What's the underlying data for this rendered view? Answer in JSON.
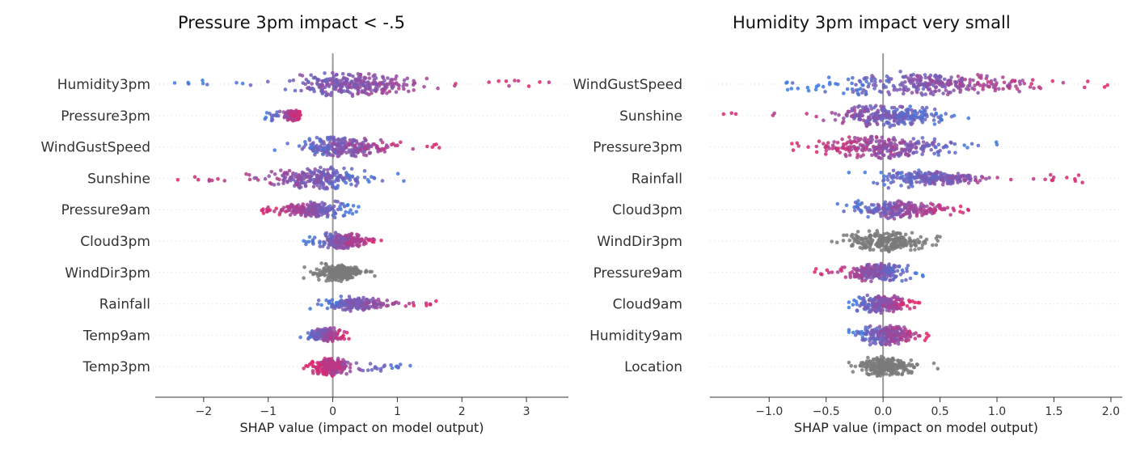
{
  "chart_data": [
    {
      "type": "scatter",
      "subtype": "shap_beeswarm",
      "title": "Pressure 3pm impact < -.5",
      "xlabel": "SHAP value (impact on model output)",
      "xlim": [
        -2.75,
        3.65
      ],
      "xticks": [
        -2,
        -1,
        0,
        1,
        2,
        3
      ],
      "xtick_labels": [
        "−2",
        "−1",
        "0",
        "1",
        "2",
        "3"
      ],
      "colors": {
        "low": "#3b7be0",
        "high": "#e0246a",
        "categorical": "#7a7a7a",
        "zero_line": "#999999"
      },
      "features": [
        {
          "name": "Humidity3pm",
          "min": -2.45,
          "max": 3.35,
          "core": [
            -0.95,
            1.55
          ],
          "low_side": "left",
          "scale": 1.0
        },
        {
          "name": "Pressure3pm",
          "min": -1.05,
          "max": -0.5,
          "core": [
            -0.75,
            -0.5
          ],
          "low_side": "left",
          "scale": 0.9
        },
        {
          "name": "WindGustSpeed",
          "min": -0.9,
          "max": 1.65,
          "core": [
            -0.75,
            1.1
          ],
          "low_side": "left",
          "scale": 0.8
        },
        {
          "name": "Sunshine",
          "min": -2.4,
          "max": 1.1,
          "core": [
            -1.3,
            0.85
          ],
          "low_side": "right",
          "scale": 0.85
        },
        {
          "name": "Pressure9am",
          "min": -1.1,
          "max": 0.4,
          "core": [
            -0.95,
            0.3
          ],
          "low_side": "right",
          "scale": 0.7
        },
        {
          "name": "Cloud3pm",
          "min": -0.45,
          "max": 0.75,
          "core": [
            -0.35,
            0.7
          ],
          "low_side": "left",
          "scale": 0.65
        },
        {
          "name": "WindDir3pm",
          "min": -0.45,
          "max": 0.65,
          "core": [
            -0.4,
            0.6
          ],
          "low_side": "none",
          "scale": 0.75
        },
        {
          "name": "Rainfall",
          "min": -0.35,
          "max": 1.6,
          "core": [
            -0.3,
            1.05
          ],
          "low_side": "left",
          "scale": 0.6
        },
        {
          "name": "Temp9am",
          "min": -0.5,
          "max": 0.25,
          "core": [
            -0.45,
            0.2
          ],
          "low_side": "left",
          "scale": 0.55
        },
        {
          "name": "Temp3pm",
          "min": -0.45,
          "max": 1.2,
          "core": [
            -0.4,
            0.3
          ],
          "low_side": "right",
          "scale": 0.75
        }
      ]
    },
    {
      "type": "scatter",
      "subtype": "shap_beeswarm",
      "title": "Humidity 3pm impact very small",
      "xlabel": "SHAP value (impact on model output)",
      "xlim": [
        -1.52,
        2.1
      ],
      "xticks": [
        -1.0,
        -0.5,
        0.0,
        0.5,
        1.0,
        1.5,
        2.0
      ],
      "xtick_labels": [
        "−1.0",
        "−0.5",
        "0.0",
        "0.5",
        "1.0",
        "1.5",
        "2.0"
      ],
      "colors": {
        "low": "#3b7be0",
        "high": "#e0246a",
        "categorical": "#7a7a7a",
        "zero_line": "#999999"
      },
      "features": [
        {
          "name": "WindGustSpeed",
          "min": -0.85,
          "max": 1.97,
          "core": [
            -0.8,
            1.6
          ],
          "low_side": "left",
          "scale": 1.0
        },
        {
          "name": "Sunshine",
          "min": -1.4,
          "max": 0.75,
          "core": [
            -0.6,
            0.72
          ],
          "low_side": "right",
          "scale": 0.85
        },
        {
          "name": "Pressure3pm",
          "min": -0.8,
          "max": 1.0,
          "core": [
            -0.8,
            0.8
          ],
          "low_side": "right",
          "scale": 0.9
        },
        {
          "name": "Rainfall",
          "min": -0.3,
          "max": 1.75,
          "core": [
            -0.25,
            1.05
          ],
          "low_side": "left",
          "scale": 0.75
        },
        {
          "name": "Cloud3pm",
          "min": -0.4,
          "max": 0.75,
          "core": [
            -0.38,
            0.72
          ],
          "low_side": "left",
          "scale": 0.7
        },
        {
          "name": "WindDir3pm",
          "min": -0.45,
          "max": 0.5,
          "core": [
            -0.45,
            0.5
          ],
          "low_side": "none",
          "scale": 0.8
        },
        {
          "name": "Pressure9am",
          "min": -0.6,
          "max": 0.35,
          "core": [
            -0.45,
            0.33
          ],
          "low_side": "right",
          "scale": 0.7
        },
        {
          "name": "Cloud9am",
          "min": -0.3,
          "max": 0.32,
          "core": [
            -0.3,
            0.3
          ],
          "low_side": "left",
          "scale": 0.7
        },
        {
          "name": "Humidity9am",
          "min": -0.3,
          "max": 0.4,
          "core": [
            -0.3,
            0.38
          ],
          "low_side": "left",
          "scale": 0.75
        },
        {
          "name": "Location",
          "min": -0.3,
          "max": 0.48,
          "core": [
            -0.3,
            0.35
          ],
          "low_side": "none",
          "scale": 0.75
        }
      ]
    }
  ]
}
